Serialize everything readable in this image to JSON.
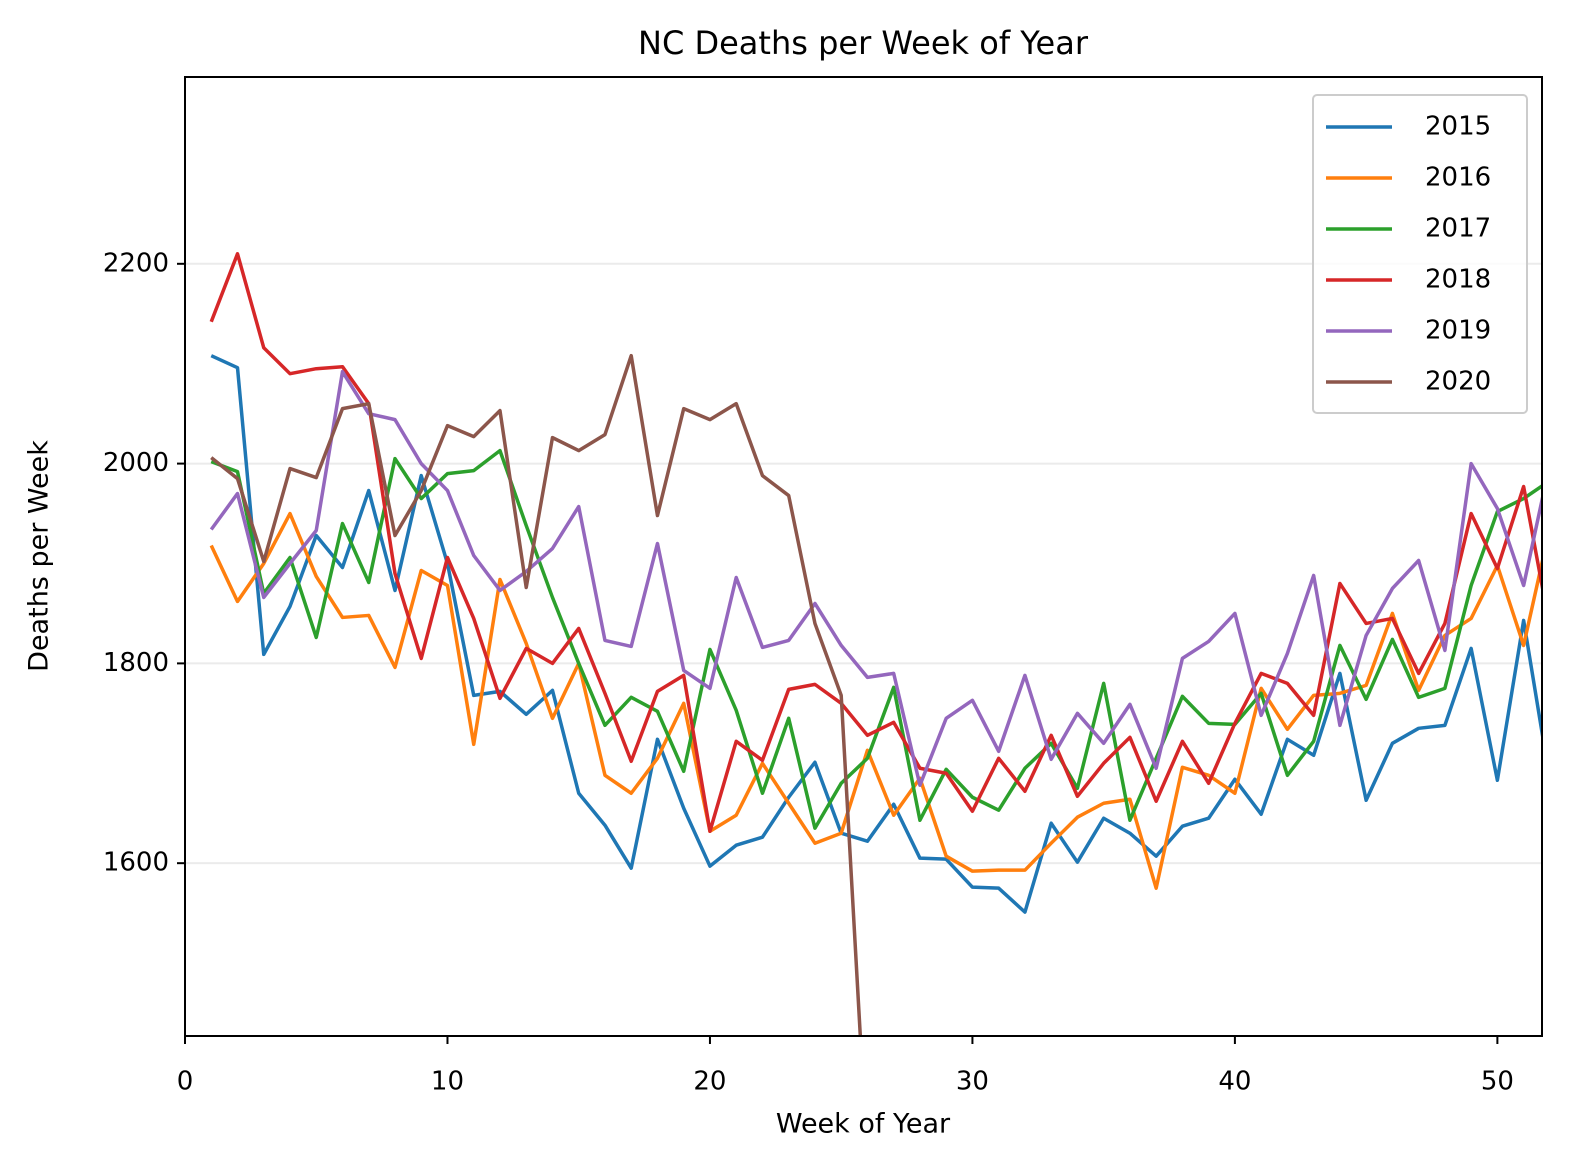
{
  "chart_data": {
    "type": "line",
    "title": "NC Deaths per Week of Year",
    "x_label": "Week of Year",
    "y_label": "Deaths per Week",
    "x": [
      1,
      2,
      3,
      4,
      5,
      6,
      7,
      8,
      9,
      10,
      11,
      12,
      13,
      14,
      15,
      16,
      17,
      18,
      19,
      20,
      21,
      22,
      23,
      24,
      25,
      26,
      27,
      28,
      29,
      30,
      31,
      32,
      33,
      34,
      35,
      36,
      37,
      38,
      39,
      40,
      41,
      42,
      43,
      44,
      45,
      46,
      47,
      48,
      49,
      50,
      51,
      52
    ],
    "xlim": [
      0,
      51.7
    ],
    "xticks": [
      0,
      10,
      20,
      30,
      40,
      50
    ],
    "ylim": [
      1427,
      2387
    ],
    "yticks": [
      1600,
      1800,
      2000,
      2200
    ],
    "grid": true,
    "legend": "upper right",
    "series": [
      {
        "name": "2015",
        "color": "#1f77b4",
        "values": [
          2108,
          2096,
          1809,
          1857,
          1928,
          1896,
          1973,
          1873,
          1988,
          1900,
          1768,
          1772,
          1749,
          1773,
          1670,
          1638,
          1595,
          1724,
          1655,
          1597,
          1618,
          1626,
          1666,
          1701,
          1630,
          1622,
          1659,
          1605,
          1604,
          1576,
          1575,
          1551,
          1640,
          1601,
          1645,
          1630,
          1607,
          1637,
          1645,
          1684,
          1649,
          1724,
          1708,
          1790,
          1663,
          1720,
          1735,
          1738,
          1815,
          1683,
          1843,
          1683
        ]
      },
      {
        "name": "2016",
        "color": "#ff7f0e",
        "values": [
          1918,
          1862,
          1900,
          1950,
          1887,
          1846,
          1848,
          1796,
          1893,
          1878,
          1719,
          1884,
          1820,
          1745,
          1800,
          1688,
          1670,
          1705,
          1760,
          1632,
          1648,
          1700,
          1660,
          1620,
          1630,
          1713,
          1648,
          1685,
          1607,
          1592,
          1593,
          1593,
          1620,
          1646,
          1660,
          1664,
          1575,
          1696,
          1688,
          1670,
          1775,
          1734,
          1768,
          1770,
          1778,
          1850,
          1773,
          1828,
          1845,
          1898,
          1818,
          1936
        ]
      },
      {
        "name": "2017",
        "color": "#2ca02c",
        "values": [
          2002,
          1992,
          1870,
          1906,
          1826,
          1940,
          1881,
          2005,
          1965,
          1990,
          1993,
          2013,
          1938,
          1866,
          1800,
          1738,
          1766,
          1752,
          1692,
          1814,
          1753,
          1670,
          1745,
          1635,
          1680,
          1705,
          1776,
          1643,
          1694,
          1666,
          1653,
          1695,
          1720,
          1675,
          1780,
          1643,
          1705,
          1767,
          1740,
          1739,
          1770,
          1688,
          1722,
          1818,
          1764,
          1824,
          1766,
          1775,
          1878,
          1952,
          1965,
          1983
        ]
      },
      {
        "name": "2018",
        "color": "#d62728",
        "values": [
          2142,
          2210,
          2116,
          2090,
          2095,
          2097,
          2060,
          1890,
          1805,
          1906,
          1845,
          1765,
          1815,
          1800,
          1835,
          1770,
          1702,
          1772,
          1788,
          1632,
          1722,
          1703,
          1774,
          1779,
          1760,
          1728,
          1741,
          1695,
          1690,
          1652,
          1705,
          1672,
          1728,
          1667,
          1700,
          1726,
          1662,
          1722,
          1680,
          1740,
          1790,
          1780,
          1748,
          1880,
          1840,
          1845,
          1790,
          1840,
          1950,
          1895,
          1977,
          1836
        ]
      },
      {
        "name": "2019",
        "color": "#9467bd",
        "values": [
          1934,
          1970,
          1866,
          1900,
          1933,
          2092,
          2050,
          2044,
          2000,
          1973,
          1908,
          1873,
          1892,
          1915,
          1957,
          1823,
          1817,
          1920,
          1793,
          1775,
          1886,
          1816,
          1823,
          1860,
          1818,
          1786,
          1790,
          1678,
          1745,
          1763,
          1712,
          1788,
          1704,
          1750,
          1720,
          1759,
          1695,
          1805,
          1822,
          1850,
          1748,
          1810,
          1888,
          1738,
          1828,
          1875,
          1903,
          1813,
          2000,
          1955,
          1878,
          2000
        ]
      },
      {
        "name": "2020",
        "color": "#8c564b",
        "values": [
          2006,
          1985,
          1902,
          1995,
          1986,
          2055,
          2060,
          1928,
          1973,
          2038,
          2027,
          2053,
          1876,
          2026,
          2013,
          2029,
          2108,
          1948,
          2055,
          2044,
          2060,
          1988,
          1968,
          1840,
          1768,
          1300,
          null,
          null,
          null,
          null,
          null,
          null,
          null,
          null,
          null,
          null,
          null,
          null,
          null,
          null,
          null,
          null,
          null,
          null,
          null,
          null,
          null,
          null,
          null,
          null,
          null,
          null
        ]
      }
    ]
  }
}
